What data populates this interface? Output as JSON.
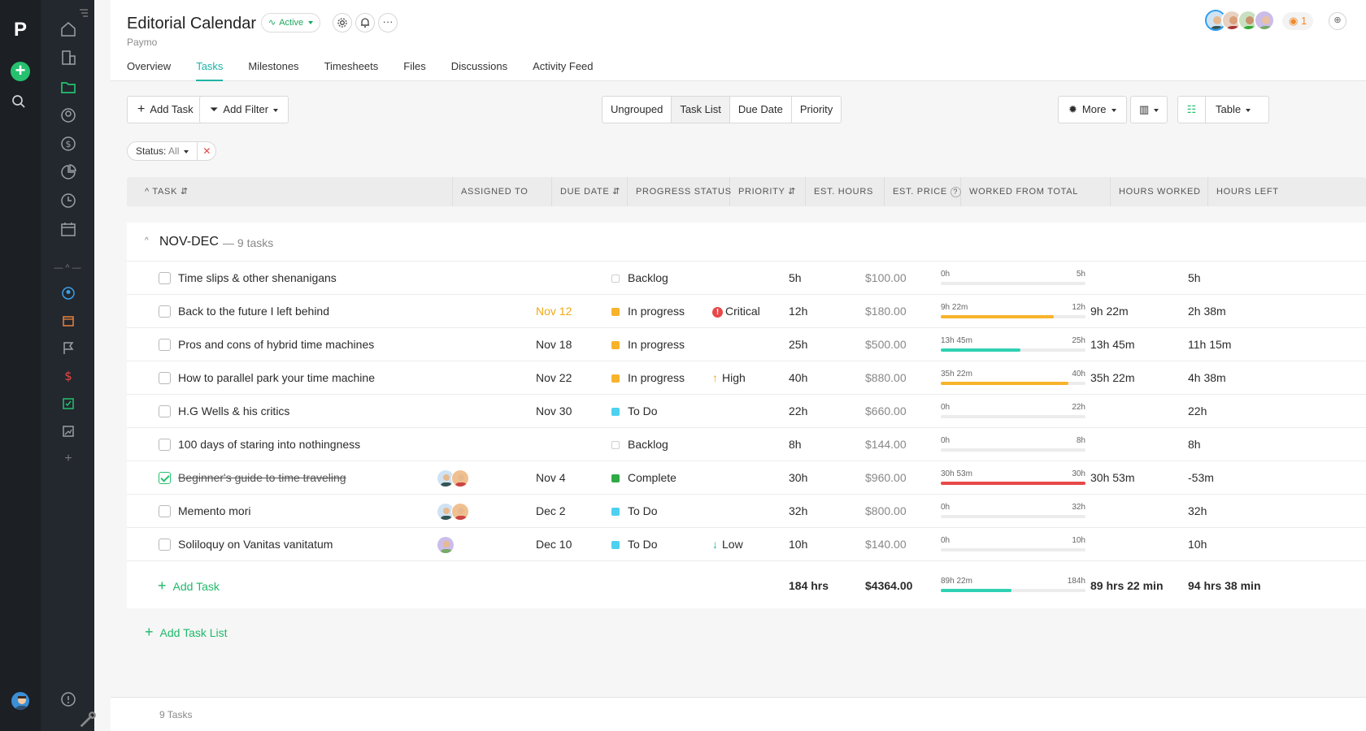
{
  "header": {
    "title": "Editorial Calendar",
    "subtitle": "Paymo",
    "status": "Active",
    "notifications": "1",
    "more": "···"
  },
  "tabs": [
    "Overview",
    "Tasks",
    "Milestones",
    "Timesheets",
    "Files",
    "Discussions",
    "Activity Feed"
  ],
  "toolbar": {
    "add_task": "Add Task",
    "add_filter": "Add Filter",
    "grouping": [
      "Ungrouped",
      "Task List",
      "Due Date",
      "Priority"
    ],
    "more": "More",
    "view": "Table"
  },
  "filter": {
    "label": "Status:",
    "value": "All",
    "clear": "✕"
  },
  "columns": [
    "TASK",
    "ASSIGNED TO",
    "DUE DATE",
    "PROGRESS STATUS",
    "PRIORITY",
    "EST. HOURS",
    "EST. PRICE",
    "WORKED FROM TOTAL",
    "HOURS WORKED",
    "HOURS LEFT"
  ],
  "group": {
    "name": "NOV-DEC",
    "count": "— 9 tasks"
  },
  "colors": {
    "accent": "#1fb3a6",
    "green": "#25c16f",
    "orange": "#f7b32b",
    "teal": "#2fd1b3",
    "red": "#e84848",
    "todo": "#4dd1f0",
    "complete": "#2eaa46"
  },
  "tasks": [
    {
      "name": "Time slips & other shenanigans",
      "due": "",
      "status": "Backlog",
      "priority": "",
      "est": "5h",
      "price": "$100.00",
      "worked_label": "0h",
      "total_label": "5h",
      "worked": "",
      "left": "5h",
      "progress": 0,
      "done": false
    },
    {
      "name": "Back to the future I left behind",
      "due": "Nov 12",
      "status": "In progress",
      "priority": "Critical",
      "est": "12h",
      "price": "$180.00",
      "worked_label": "9h 22m",
      "total_label": "12h",
      "worked": "9h 22m",
      "left": "2h 38m",
      "progress": 0.78,
      "done": false
    },
    {
      "name": "Pros and cons of hybrid time machines",
      "due": "Nov 18",
      "status": "In progress",
      "priority": "",
      "est": "25h",
      "price": "$500.00",
      "worked_label": "13h 45m",
      "total_label": "25h",
      "worked": "13h 45m",
      "left": "11h 15m",
      "progress": 0.55,
      "done": false
    },
    {
      "name": "How to parallel park your time machine",
      "due": "Nov 22",
      "status": "In progress",
      "priority": "High",
      "est": "40h",
      "price": "$880.00",
      "worked_label": "35h 22m",
      "total_label": "40h",
      "worked": "35h 22m",
      "left": "4h 38m",
      "progress": 0.88,
      "done": false
    },
    {
      "name": "H.G Wells & his critics",
      "due": "Nov 30",
      "status": "To Do",
      "priority": "",
      "est": "22h",
      "price": "$660.00",
      "worked_label": "0h",
      "total_label": "22h",
      "worked": "",
      "left": "22h",
      "progress": 0,
      "done": false
    },
    {
      "name": "100 days of staring into nothingness",
      "due": "",
      "status": "Backlog",
      "priority": "",
      "est": "8h",
      "price": "$144.00",
      "worked_label": "0h",
      "total_label": "8h",
      "worked": "",
      "left": "8h",
      "progress": 0,
      "done": false
    },
    {
      "name": "Beginner's guide to time traveling",
      "due": "Nov 4",
      "status": "Complete",
      "priority": "",
      "est": "30h",
      "price": "$960.00",
      "worked_label": "30h 53m",
      "total_label": "30h",
      "worked": "30h 53m",
      "left": "-53m",
      "progress": 1.0,
      "done": true
    },
    {
      "name": "Memento mori",
      "due": "Dec 2",
      "status": "To Do",
      "priority": "",
      "est": "32h",
      "price": "$800.00",
      "worked_label": "0h",
      "total_label": "32h",
      "worked": "",
      "left": "32h",
      "progress": 0,
      "done": false
    },
    {
      "name": "Soliloquy on Vanitas vanitatum",
      "due": "Dec 10",
      "status": "To Do",
      "priority": "Low",
      "est": "10h",
      "price": "$140.00",
      "worked_label": "0h",
      "total_label": "10h",
      "worked": "",
      "left": "10h",
      "progress": 0,
      "done": false
    }
  ],
  "totals": {
    "add_task": "Add Task",
    "est": "184 hrs",
    "price": "$4364.00",
    "worked_label": "89h 22m",
    "total_label": "184h",
    "progress": 0.49,
    "worked": "89 hrs 22 min",
    "left": "94 hrs 38 min"
  },
  "add_task_list": "Add Task List",
  "footer": "9 Tasks"
}
